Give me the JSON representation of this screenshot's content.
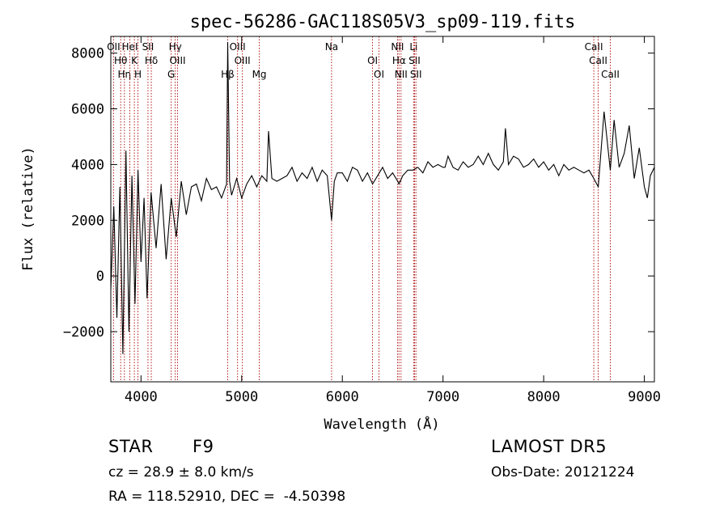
{
  "chart_data": {
    "type": "line",
    "title": "spec-56286-GAC118S05V3_sp09-119.fits",
    "xlabel": "Wavelength (Å)",
    "ylabel": "Flux (relative)",
    "xlim": [
      3700,
      9100
    ],
    "ylim": [
      -3800,
      8600
    ],
    "xticks": [
      4000,
      5000,
      6000,
      7000,
      8000,
      9000
    ],
    "yticks": [
      -2000,
      0,
      2000,
      4000,
      6000,
      8000
    ],
    "grid": false,
    "series": [
      {
        "x": [
          3700,
          3730,
          3760,
          3790,
          3820,
          3850,
          3880,
          3910,
          3940,
          3970,
          4000,
          4030,
          4060,
          4100,
          4150,
          4200,
          4250,
          4300,
          4350,
          4400,
          4450,
          4500,
          4550,
          4600,
          4650,
          4700,
          4750,
          4800,
          4850,
          4861,
          4880,
          4900,
          4950,
          5000,
          5050,
          5100,
          5150,
          5200,
          5250,
          5267,
          5300,
          5350,
          5400,
          5450,
          5500,
          5550,
          5600,
          5650,
          5700,
          5750,
          5800,
          5850,
          5893,
          5920,
          5950,
          6000,
          6050,
          6100,
          6150,
          6200,
          6250,
          6300,
          6350,
          6400,
          6450,
          6500,
          6550,
          6563,
          6600,
          6650,
          6700,
          6750,
          6800,
          6850,
          6900,
          6950,
          7000,
          7020,
          7050,
          7100,
          7150,
          7200,
          7250,
          7300,
          7350,
          7400,
          7450,
          7500,
          7550,
          7600,
          7620,
          7650,
          7700,
          7750,
          7800,
          7850,
          7900,
          7950,
          8000,
          8050,
          8100,
          8150,
          8200,
          8250,
          8300,
          8350,
          8400,
          8450,
          8498,
          8542,
          8600,
          8662,
          8700,
          8750,
          8800,
          8850,
          8900,
          8950,
          9000,
          9030,
          9060,
          9100
        ],
        "y": [
          -500,
          2500,
          -1500,
          3200,
          -2800,
          4500,
          -2000,
          3600,
          -1000,
          3800,
          500,
          2800,
          -800,
          3000,
          1000,
          3300,
          600,
          2800,
          1400,
          3400,
          2200,
          3200,
          3300,
          2700,
          3500,
          3100,
          3200,
          2800,
          3300,
          8400,
          3400,
          2900,
          3500,
          2800,
          3300,
          3600,
          3200,
          3600,
          3400,
          5200,
          3500,
          3400,
          3500,
          3600,
          3900,
          3400,
          3700,
          3500,
          3900,
          3400,
          3800,
          3600,
          2000,
          3400,
          3700,
          3700,
          3400,
          3900,
          3800,
          3400,
          3700,
          3300,
          3600,
          3900,
          3500,
          3700,
          3400,
          3300,
          3600,
          3800,
          3800,
          3900,
          3700,
          4100,
          3900,
          4000,
          3900,
          3900,
          4300,
          3900,
          3800,
          4100,
          3900,
          4000,
          4300,
          4000,
          4400,
          4000,
          3800,
          4100,
          5300,
          4000,
          4300,
          4200,
          3900,
          4000,
          4200,
          3900,
          4100,
          3800,
          4000,
          3600,
          4000,
          3800,
          3900,
          3800,
          3700,
          3800,
          3500,
          3200,
          5900,
          3800,
          5600,
          3900,
          4400,
          5400,
          3500,
          4600,
          3200,
          2800,
          3600,
          3900
        ]
      }
    ],
    "lines": [
      {
        "x": 3727,
        "labels": [
          "OII"
        ]
      },
      {
        "x": 3798,
        "labels": [
          "Hθ"
        ]
      },
      {
        "x": 3835,
        "labels": [
          "Hη"
        ]
      },
      {
        "x": 3889,
        "labels": [
          "HeI"
        ]
      },
      {
        "x": 3934,
        "labels": [
          "K"
        ]
      },
      {
        "x": 3969,
        "labels": [
          "H"
        ]
      },
      {
        "x": 4069,
        "labels": [
          "SII"
        ]
      },
      {
        "x": 4102,
        "labels": [
          "Hδ"
        ]
      },
      {
        "x": 4300,
        "labels": [
          "G"
        ]
      },
      {
        "x": 4340,
        "labels": [
          "Hγ"
        ]
      },
      {
        "x": 4363,
        "labels": [
          "OIII"
        ]
      },
      {
        "x": 4861,
        "labels": [
          "Hβ"
        ]
      },
      {
        "x": 4959,
        "labels": [
          "OIII"
        ]
      },
      {
        "x": 5007,
        "labels": [
          "OIII"
        ]
      },
      {
        "x": 5175,
        "labels": [
          "Mg"
        ]
      },
      {
        "x": 5893,
        "labels": [
          "Na"
        ]
      },
      {
        "x": 6300,
        "labels": [
          "OI"
        ]
      },
      {
        "x": 6364,
        "labels": [
          "OI"
        ]
      },
      {
        "x": 6548,
        "labels": [
          "NII"
        ]
      },
      {
        "x": 6563,
        "labels": [
          "Hα"
        ]
      },
      {
        "x": 6583,
        "labels": [
          "NII"
        ]
      },
      {
        "x": 6708,
        "labels": [
          "Li"
        ]
      },
      {
        "x": 6717,
        "labels": [
          "SII"
        ]
      },
      {
        "x": 6731,
        "labels": [
          "SII"
        ]
      },
      {
        "x": 8498,
        "labels": [
          "CaII"
        ]
      },
      {
        "x": 8542,
        "labels": [
          "CaII"
        ]
      },
      {
        "x": 8662,
        "labels": [
          "CaII"
        ]
      }
    ],
    "line_color": "#aa0000"
  },
  "footer": {
    "object_class": "STAR",
    "subclass": "F9",
    "survey": "LAMOST DR5",
    "redshift": "cz = 28.9 ± 8.0 km/s",
    "obs_date": "Obs-Date: 20121224",
    "coords": "RA = 118.52910, DEC =  -4.50398"
  }
}
